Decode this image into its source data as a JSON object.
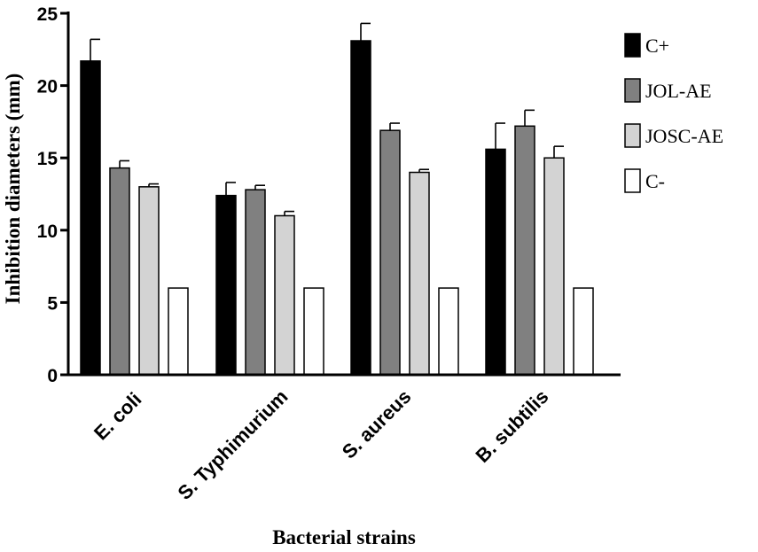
{
  "chart_data": {
    "type": "bar",
    "title": "",
    "xlabel": "Bacterial strains",
    "ylabel": "Inhibition diameters (mm)",
    "ylim": [
      0,
      25
    ],
    "yticks": [
      "0",
      "5",
      "10",
      "15",
      "20",
      "25"
    ],
    "categories": [
      "E. coli",
      "S. Typhimurium",
      "S. aureus",
      "B. subtilis"
    ],
    "series": [
      {
        "name": "C+",
        "color": "#000000",
        "values": [
          21.7,
          12.4,
          23.1,
          15.6
        ],
        "errors": [
          1.5,
          0.9,
          1.2,
          1.8
        ]
      },
      {
        "name": "JOL-AE",
        "color": "#808080",
        "values": [
          14.3,
          12.8,
          16.9,
          17.2
        ],
        "errors": [
          0.5,
          0.3,
          0.5,
          1.1
        ]
      },
      {
        "name": "JOSC-AE",
        "color": "#d3d3d3",
        "values": [
          13.0,
          11.0,
          14.0,
          15.0
        ],
        "errors": [
          0.2,
          0.3,
          0.2,
          0.8
        ]
      },
      {
        "name": "C-",
        "color": "#ffffff",
        "values": [
          6,
          6,
          6,
          6
        ],
        "errors": [
          0,
          0,
          0,
          0
        ]
      }
    ],
    "legend_position": "top-right",
    "grid": false
  }
}
